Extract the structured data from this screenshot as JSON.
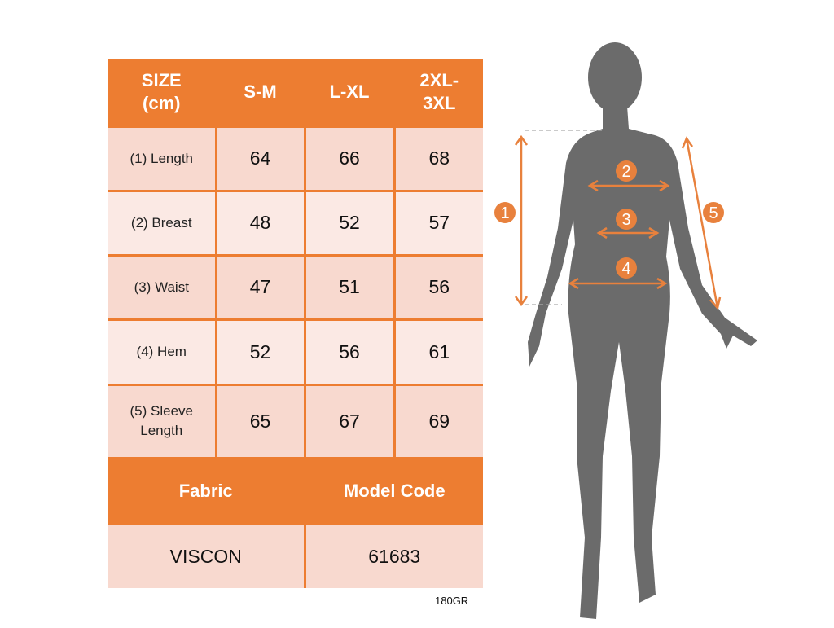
{
  "table": {
    "header": [
      "SIZE\n(cm)",
      "S-M",
      "L-XL",
      "2XL-\n3XL"
    ],
    "rows": [
      {
        "label": "(1) Length",
        "values": [
          "64",
          "66",
          "68"
        ]
      },
      {
        "label": "(2) Breast",
        "values": [
          "48",
          "52",
          "57"
        ]
      },
      {
        "label": "(3) Waist",
        "values": [
          "47",
          "51",
          "56"
        ]
      },
      {
        "label": "(4) Hem",
        "values": [
          "52",
          "56",
          "61"
        ]
      },
      {
        "label": "(5) Sleeve\nLength",
        "values": [
          "65",
          "67",
          "69"
        ]
      }
    ],
    "footer_headers": [
      "Fabric",
      "Model Code"
    ],
    "footer_values": [
      "VISCON",
      "61683"
    ]
  },
  "note": "180GR",
  "figure": {
    "markers": [
      "1",
      "2",
      "3",
      "4",
      "5"
    ]
  },
  "colors": {
    "accent": "#ed7d31",
    "row_dark": "#f8d9cf",
    "row_light": "#fbe9e4",
    "silhouette": "#6b6b6b"
  }
}
